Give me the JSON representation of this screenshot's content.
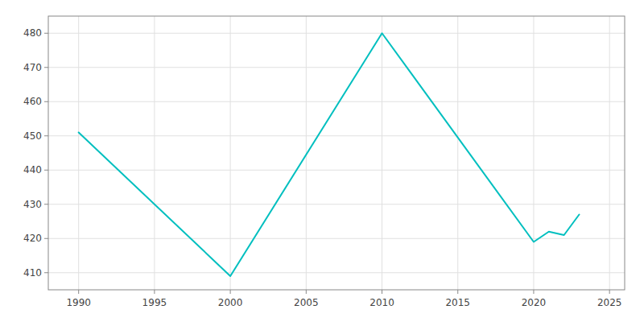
{
  "chart_data": {
    "type": "line",
    "x": [
      1990,
      2000,
      2010,
      2020,
      2021,
      2022,
      2023
    ],
    "values": [
      451,
      409,
      480,
      419,
      422,
      421,
      427
    ],
    "color": "#00BFBF",
    "xlim": [
      1988,
      2026
    ],
    "ylim": [
      405,
      485
    ],
    "xticks": [
      1990,
      1995,
      2000,
      2005,
      2010,
      2015,
      2020,
      2025
    ],
    "yticks": [
      410,
      420,
      430,
      440,
      450,
      460,
      470,
      480
    ],
    "grid": true
  }
}
